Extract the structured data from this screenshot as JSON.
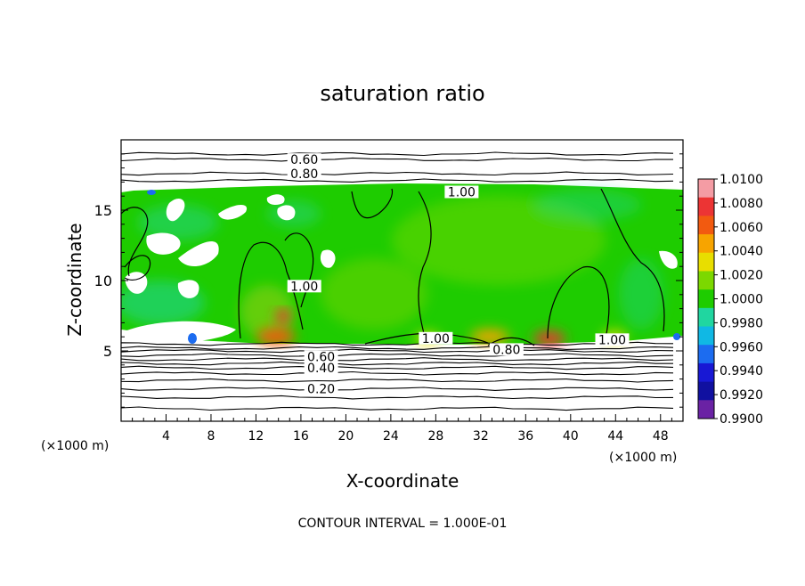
{
  "chart_data": {
    "type": "heatmap",
    "title": "saturation ratio",
    "xlabel": "X-coordinate",
    "ylabel": "Z-coordinate",
    "x_unit_left": "(×1000 m)",
    "x_unit_right": "(×1000 m)",
    "xlim": [
      0,
      50
    ],
    "ylim": [
      0,
      20
    ],
    "x_ticks": [
      4,
      8,
      12,
      16,
      20,
      24,
      28,
      32,
      36,
      40,
      44,
      48
    ],
    "y_ticks": [
      5,
      10,
      15
    ],
    "footer": "CONTOUR INTERVAL = 1.000E-01",
    "colorbar": {
      "range": [
        0.99,
        1.01
      ],
      "labels": [
        "1.0100",
        "1.0080",
        "1.0060",
        "1.0040",
        "1.0020",
        "1.0000",
        "0.9980",
        "0.9960",
        "0.9940",
        "0.9920",
        "0.9900"
      ],
      "colors": [
        "#f49ca4",
        "#ec3434",
        "#f25a10",
        "#f7a400",
        "#e8de00",
        "#7cd800",
        "#1ecc00",
        "#20d6a0",
        "#10b8e4",
        "#1c6cf0",
        "#1818d4",
        "#1010a0",
        "#6a22a4"
      ]
    },
    "contour_labels": [
      {
        "text": "0.60",
        "x": 16.3,
        "z": 18.6
      },
      {
        "text": "0.80",
        "x": 16.3,
        "z": 17.6
      },
      {
        "text": "1.00",
        "x": 30.3,
        "z": 16.3
      },
      {
        "text": "1.00",
        "x": 16.3,
        "z": 9.6
      },
      {
        "text": "1.00",
        "x": 28.0,
        "z": 5.9
      },
      {
        "text": "0.80",
        "x": 34.3,
        "z": 5.1
      },
      {
        "text": "1.00",
        "x": 43.7,
        "z": 5.8
      },
      {
        "text": "0.60",
        "x": 17.8,
        "z": 4.6
      },
      {
        "text": "0.40",
        "x": 17.8,
        "z": 3.8
      },
      {
        "text": "0.20",
        "x": 17.8,
        "z": 2.3
      }
    ],
    "contour_lines_z": [
      0.9,
      1.7,
      2.3,
      2.9,
      3.4,
      3.8,
      4.1,
      4.4,
      4.7,
      5.0,
      5.2,
      5.5,
      17.1,
      17.6,
      18.6,
      19.0
    ]
  }
}
